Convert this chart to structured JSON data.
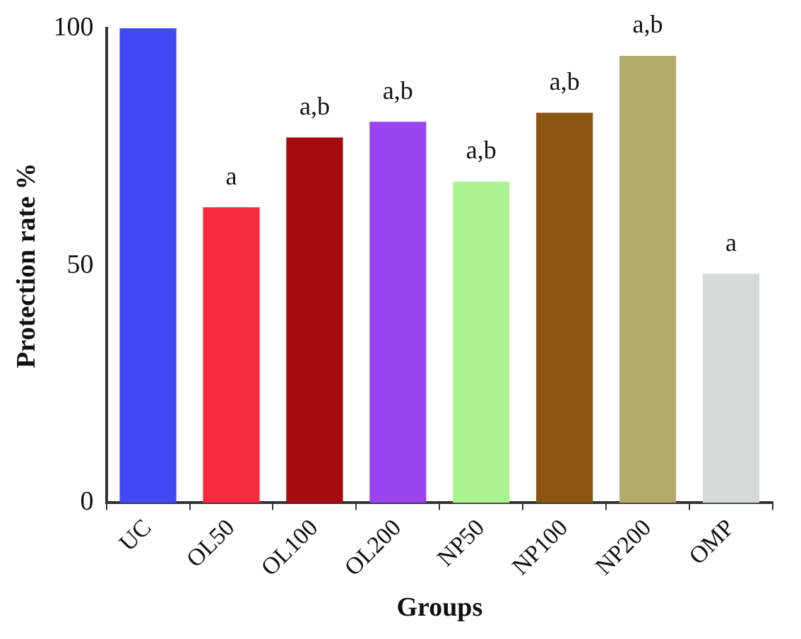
{
  "chart_data": {
    "type": "bar",
    "xlabel": "Groups",
    "ylabel": "Protection rate %",
    "categories": [
      "UC",
      "OL50",
      "OL100",
      "OL200",
      "NP50",
      "NP100",
      "NP200",
      "OMP"
    ],
    "values": [
      100,
      62.3,
      77,
      80.3,
      67.7,
      82.2,
      94.2,
      48.3
    ],
    "colors": [
      "#4348f5",
      "#f82a3d",
      "#a30b0d",
      "#9a44f2",
      "#aaf38e",
      "#8b5411",
      "#b5ab6a",
      "#d4dbd9"
    ],
    "ylim": [
      0,
      100
    ],
    "yticks": [
      0,
      50,
      100
    ],
    "grid": false,
    "annotations": [
      {
        "text": "a",
        "x": "OL50",
        "y": 62.3
      },
      {
        "text": "a,b",
        "x": "OL100",
        "y": 77
      },
      {
        "text": "a,b",
        "x": "OL200",
        "y": 80.3
      },
      {
        "text": "a,b",
        "x": "NP50",
        "y": 67.7
      },
      {
        "text": "a,b",
        "x": "NP100",
        "y": 82.2
      },
      {
        "text": "a,b",
        "x": "NP200",
        "y": 94.2
      },
      {
        "text": "a",
        "x": "OMP",
        "y": 48.3
      }
    ]
  }
}
